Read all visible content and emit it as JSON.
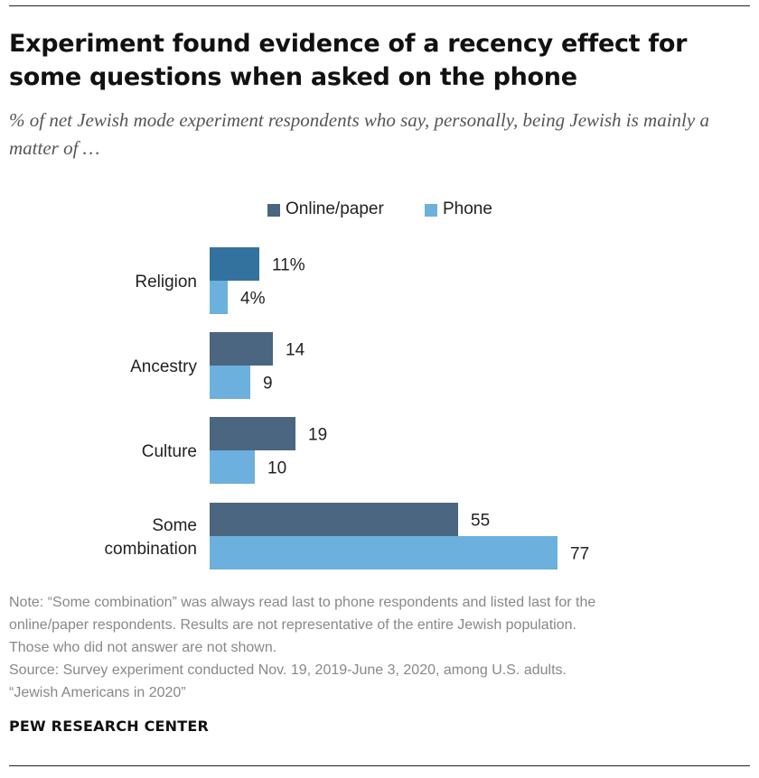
{
  "title": "Experiment found evidence of a recency effect for some questions when asked on the phone",
  "subtitle": "% of net Jewish mode experiment respondents who say, personally, being Jewish is mainly a matter of …",
  "legend": {
    "online": "Online/paper",
    "phone": "Phone"
  },
  "colors": {
    "online": "#4a6680",
    "online_highlight": "#33729e",
    "phone": "#6cb0dd"
  },
  "chart_data": {
    "type": "bar",
    "orientation": "horizontal",
    "categories": [
      "Religion",
      "Ancestry",
      "Culture",
      "Some combination"
    ],
    "category_lines": [
      [
        "Religion"
      ],
      [
        "Ancestry"
      ],
      [
        "Culture"
      ],
      [
        "Some",
        "combination"
      ]
    ],
    "series": [
      {
        "name": "Online/paper",
        "values": [
          11,
          14,
          19,
          55
        ],
        "labels": [
          "11%",
          "14",
          "19",
          "55"
        ]
      },
      {
        "name": "Phone",
        "values": [
          4,
          9,
          10,
          77
        ],
        "labels": [
          "4%",
          "9",
          "10",
          "77"
        ]
      }
    ],
    "xlim": [
      0,
      100
    ],
    "title": "Experiment found evidence of a recency effect for some questions when asked on the phone",
    "xlabel": "",
    "ylabel": ""
  },
  "notes": {
    "line1": "Note: “Some combination” was always read last to phone respondents and listed last for the",
    "line2": "online/paper respondents. Results are not representative of the entire Jewish population.",
    "line3": "Those who did not answer are not shown.",
    "line4": "Source: Survey experiment conducted Nov. 19, 2019-June 3, 2020, among U.S. adults.",
    "line5": "“Jewish Americans in 2020”"
  },
  "brand": "PEW RESEARCH CENTER"
}
